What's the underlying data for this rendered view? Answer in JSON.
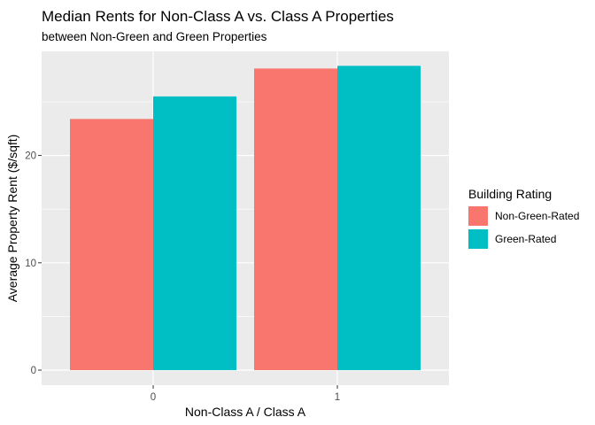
{
  "chart_data": {
    "type": "bar",
    "title": "Median Rents for Non-Class A vs. Class A Properties",
    "subtitle": "between Non-Green and Green Properties",
    "xlabel": "Non-Class A / Class A",
    "ylabel": "Average Property Rent ($/sqft)",
    "categories": [
      "0",
      "1"
    ],
    "series": [
      {
        "name": "Non-Green-Rated",
        "values": [
          23.4,
          28.1
        ]
      },
      {
        "name": "Green-Rated",
        "values": [
          25.5,
          28.35
        ]
      }
    ],
    "ylim": [
      -1.4,
      29.7
    ],
    "yticks": [
      0,
      10,
      20
    ],
    "ytick_labels": [
      "0",
      "10",
      "20"
    ],
    "grid": true,
    "legend": {
      "title": "Building Rating",
      "placement": "right"
    },
    "colors": {
      "Non-Green-Rated": "#F8766D",
      "Green-Rated": "#00BFC4",
      "panel_background": "#EBEBEB",
      "grid": "#FFFFFF"
    }
  }
}
